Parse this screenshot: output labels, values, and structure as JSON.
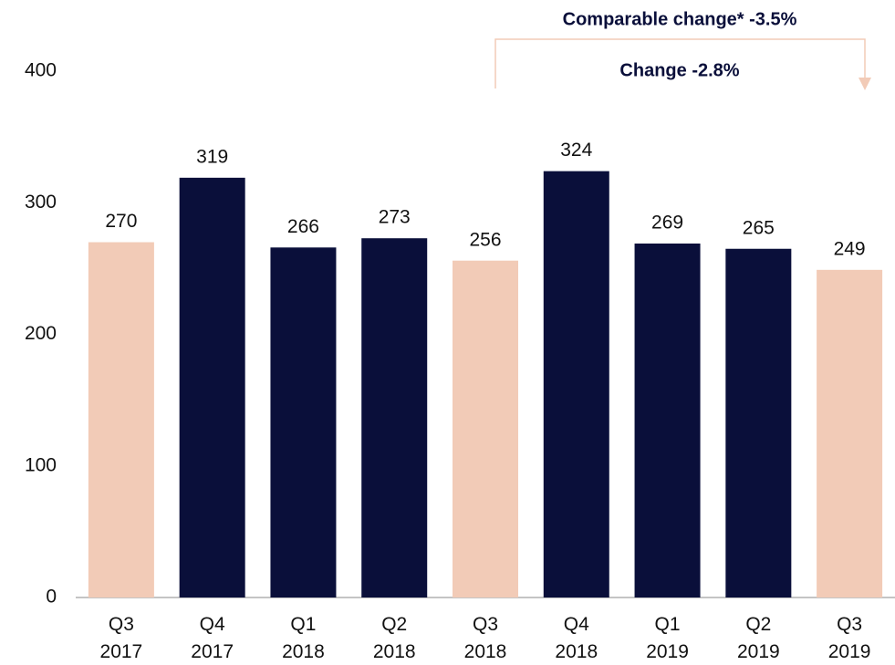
{
  "chart_data": {
    "type": "bar",
    "annotations": [
      "Comparable change* -3.5%",
      "Change -2.8%"
    ],
    "categories": [
      "Q3\n2017",
      "Q4\n2017",
      "Q1\n2018",
      "Q2\n2018",
      "Q3\n2018",
      "Q4\n2018",
      "Q1\n2019",
      "Q2\n2019",
      "Q3\n2019"
    ],
    "values": [
      270,
      319,
      266,
      273,
      256,
      324,
      269,
      265,
      249
    ],
    "colors": [
      "#f2cbb7",
      "#0a0f3a",
      "#0a0f3a",
      "#0a0f3a",
      "#f2cbb7",
      "#0a0f3a",
      "#0a0f3a",
      "#0a0f3a",
      "#f2cbb7"
    ],
    "ylim": [
      0,
      400
    ],
    "yticks": [
      0,
      100,
      200,
      300,
      400
    ],
    "grid": false
  }
}
